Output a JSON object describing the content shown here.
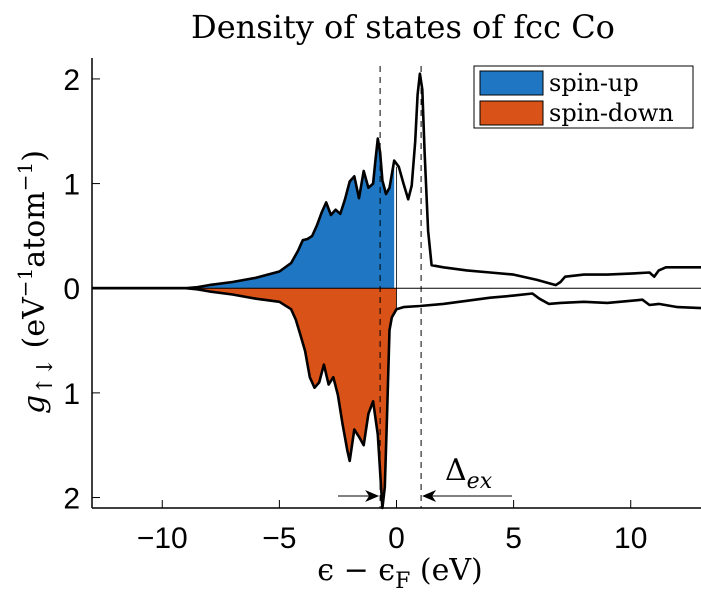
{
  "chart_data": {
    "type": "area",
    "title": "Density of states of fcc Co",
    "xlabel_parts": {
      "main": "ϵ − ϵ",
      "sub": "F",
      "unit": " (eV)"
    },
    "ylabel_parts": {
      "g": "g",
      "sub": "↑↓",
      "rest1": " (eV",
      "sup1": "−1",
      "rest2": "atom",
      "sup2": "−1",
      "rest3": ")"
    },
    "xlim": [
      -13,
      13
    ],
    "ylim": [
      -2.1,
      2.2
    ],
    "x_ticks": [
      -10,
      -5,
      0,
      5,
      10
    ],
    "x_tick_labels": [
      "−10",
      "−5",
      "0",
      "5",
      "10"
    ],
    "y_ticks": [
      2,
      1,
      0,
      -1,
      -2
    ],
    "y_tick_labels": [
      "2",
      "1",
      "0",
      "1",
      "2"
    ],
    "grid": false,
    "legend_position": "top-right",
    "fermi_level": 0,
    "exchange_split_marker": {
      "x_left": -0.7,
      "x_right": 1.05,
      "label_main": "Δ",
      "label_sub": "ex"
    },
    "series": [
      {
        "name": "spin-up",
        "color": "#1f77c4",
        "filled_below_x": 0,
        "points": [
          [
            -13,
            0
          ],
          [
            -9,
            0
          ],
          [
            -8.5,
            0.01
          ],
          [
            -8,
            0.03
          ],
          [
            -7,
            0.06
          ],
          [
            -6,
            0.1
          ],
          [
            -5,
            0.16
          ],
          [
            -4.5,
            0.24
          ],
          [
            -4.2,
            0.36
          ],
          [
            -4.0,
            0.46
          ],
          [
            -3.8,
            0.47
          ],
          [
            -3.6,
            0.5
          ],
          [
            -3.4,
            0.6
          ],
          [
            -3.2,
            0.72
          ],
          [
            -3.0,
            0.82
          ],
          [
            -2.8,
            0.7
          ],
          [
            -2.6,
            0.75
          ],
          [
            -2.4,
            0.71
          ],
          [
            -2.2,
            0.85
          ],
          [
            -2.0,
            1.02
          ],
          [
            -1.8,
            1.07
          ],
          [
            -1.6,
            0.86
          ],
          [
            -1.4,
            1.12
          ],
          [
            -1.2,
            0.96
          ],
          [
            -1.0,
            1.0
          ],
          [
            -0.9,
            1.22
          ],
          [
            -0.8,
            1.43
          ],
          [
            -0.7,
            1.3
          ],
          [
            -0.6,
            1.03
          ],
          [
            -0.45,
            0.9
          ],
          [
            -0.3,
            0.96
          ],
          [
            -0.1,
            1.22
          ],
          [
            0.1,
            1.16
          ],
          [
            0.3,
            1.0
          ],
          [
            0.5,
            0.85
          ],
          [
            0.65,
            0.98
          ],
          [
            0.8,
            1.4
          ],
          [
            0.9,
            1.85
          ],
          [
            1.0,
            2.05
          ],
          [
            1.1,
            1.9
          ],
          [
            1.2,
            1.3
          ],
          [
            1.35,
            0.55
          ],
          [
            1.5,
            0.22
          ],
          [
            2,
            0.2
          ],
          [
            3,
            0.17
          ],
          [
            4,
            0.15
          ],
          [
            5,
            0.13
          ],
          [
            6,
            0.08
          ],
          [
            6.8,
            0.03
          ],
          [
            7.0,
            0.06
          ],
          [
            7.2,
            0.11
          ],
          [
            8,
            0.13
          ],
          [
            9,
            0.13
          ],
          [
            10,
            0.14
          ],
          [
            10.8,
            0.15
          ],
          [
            11,
            0.11
          ],
          [
            11.2,
            0.17
          ],
          [
            11.5,
            0.2
          ],
          [
            13,
            0.2
          ]
        ]
      },
      {
        "name": "spin-down",
        "color": "#d95319",
        "filled_below_x": 0,
        "points": [
          [
            -13,
            0
          ],
          [
            -9,
            0
          ],
          [
            -8.5,
            -0.01
          ],
          [
            -8,
            -0.03
          ],
          [
            -7,
            -0.06
          ],
          [
            -6,
            -0.1
          ],
          [
            -5,
            -0.13
          ],
          [
            -4.5,
            -0.2
          ],
          [
            -4.3,
            -0.3
          ],
          [
            -4.1,
            -0.45
          ],
          [
            -3.9,
            -0.6
          ],
          [
            -3.7,
            -0.85
          ],
          [
            -3.5,
            -0.95
          ],
          [
            -3.3,
            -0.9
          ],
          [
            -3.1,
            -0.73
          ],
          [
            -2.9,
            -0.92
          ],
          [
            -2.7,
            -0.85
          ],
          [
            -2.5,
            -1.02
          ],
          [
            -2.3,
            -1.3
          ],
          [
            -2.1,
            -1.55
          ],
          [
            -2.0,
            -1.65
          ],
          [
            -1.8,
            -1.35
          ],
          [
            -1.6,
            -1.42
          ],
          [
            -1.4,
            -1.5
          ],
          [
            -1.2,
            -1.2
          ],
          [
            -1.0,
            -1.08
          ],
          [
            -0.8,
            -1.4
          ],
          [
            -0.7,
            -1.75
          ],
          [
            -0.6,
            -2.1
          ],
          [
            -0.5,
            -1.9
          ],
          [
            -0.4,
            -1.2
          ],
          [
            -0.3,
            -0.4
          ],
          [
            -0.2,
            -0.28
          ],
          [
            0,
            -0.2
          ],
          [
            0.3,
            -0.18
          ],
          [
            1,
            -0.17
          ],
          [
            2,
            -0.15
          ],
          [
            3,
            -0.12
          ],
          [
            4,
            -0.09
          ],
          [
            5,
            -0.07
          ],
          [
            5.8,
            -0.05
          ],
          [
            6.1,
            -0.1
          ],
          [
            6.5,
            -0.15
          ],
          [
            7,
            -0.14
          ],
          [
            8,
            -0.13
          ],
          [
            9,
            -0.14
          ],
          [
            10,
            -0.12
          ],
          [
            10.5,
            -0.11
          ],
          [
            10.8,
            -0.16
          ],
          [
            11.2,
            -0.15
          ],
          [
            12,
            -0.18
          ],
          [
            13,
            -0.19
          ]
        ]
      }
    ]
  }
}
